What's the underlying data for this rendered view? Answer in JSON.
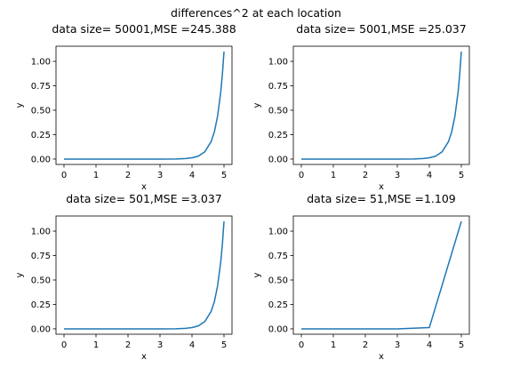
{
  "figure": {
    "suptitle": "differences^2 at each location"
  },
  "chart_data": [
    {
      "type": "line",
      "title": "data size= 50001,MSE =245.388",
      "xlabel": "x",
      "ylabel": "y",
      "xlim": [
        -0.25,
        5.25
      ],
      "ylim": [
        -0.055,
        1.155
      ],
      "xticks": [
        0,
        1,
        2,
        3,
        4,
        5
      ],
      "xtick_labels": [
        "0",
        "1",
        "2",
        "3",
        "4",
        "5"
      ],
      "yticks": [
        0,
        0.25,
        0.5,
        0.75,
        1.0
      ],
      "ytick_labels": [
        "0.00",
        "0.25",
        "0.50",
        "0.75",
        "1.00"
      ],
      "series": [
        {
          "color": "#1f77b4",
          "x": [
            0,
            1,
            2,
            3,
            3.5,
            3.8,
            4.0,
            4.2,
            4.4,
            4.6,
            4.7,
            4.8,
            4.9,
            4.95,
            5.0
          ],
          "y": [
            0,
            0,
            0,
            0,
            0.001,
            0.005,
            0.013,
            0.03,
            0.075,
            0.18,
            0.28,
            0.44,
            0.69,
            0.87,
            1.1
          ]
        }
      ]
    },
    {
      "type": "line",
      "title": "data size= 5001,MSE =25.037",
      "xlabel": "x",
      "ylabel": "y",
      "xlim": [
        -0.25,
        5.25
      ],
      "ylim": [
        -0.055,
        1.155
      ],
      "xticks": [
        0,
        1,
        2,
        3,
        4,
        5
      ],
      "xtick_labels": [
        "0",
        "1",
        "2",
        "3",
        "4",
        "5"
      ],
      "yticks": [
        0,
        0.25,
        0.5,
        0.75,
        1.0
      ],
      "ytick_labels": [
        "0.00",
        "0.25",
        "0.50",
        "0.75",
        "1.00"
      ],
      "series": [
        {
          "color": "#1f77b4",
          "x": [
            0,
            1,
            2,
            3,
            3.5,
            3.8,
            4.0,
            4.2,
            4.4,
            4.6,
            4.7,
            4.8,
            4.9,
            4.95,
            5.0
          ],
          "y": [
            0,
            0,
            0,
            0,
            0.001,
            0.005,
            0.013,
            0.03,
            0.075,
            0.18,
            0.28,
            0.44,
            0.69,
            0.87,
            1.1
          ]
        }
      ]
    },
    {
      "type": "line",
      "title": "data size= 501,MSE =3.037",
      "xlabel": "x",
      "ylabel": "y",
      "xlim": [
        -0.25,
        5.25
      ],
      "ylim": [
        -0.055,
        1.155
      ],
      "xticks": [
        0,
        1,
        2,
        3,
        4,
        5
      ],
      "xtick_labels": [
        "0",
        "1",
        "2",
        "3",
        "4",
        "5"
      ],
      "yticks": [
        0,
        0.25,
        0.5,
        0.75,
        1.0
      ],
      "ytick_labels": [
        "0.00",
        "0.25",
        "0.50",
        "0.75",
        "1.00"
      ],
      "series": [
        {
          "color": "#1f77b4",
          "x": [
            0,
            1,
            2,
            3,
            3.5,
            3.8,
            4.0,
            4.2,
            4.4,
            4.6,
            4.7,
            4.8,
            4.9,
            4.95,
            5.0
          ],
          "y": [
            0,
            0,
            0,
            0,
            0.001,
            0.005,
            0.013,
            0.03,
            0.075,
            0.18,
            0.28,
            0.44,
            0.69,
            0.87,
            1.1
          ]
        }
      ]
    },
    {
      "type": "line",
      "title": "data size= 51,MSE =1.109",
      "xlabel": "x",
      "ylabel": "y",
      "xlim": [
        -0.25,
        5.25
      ],
      "ylim": [
        -0.055,
        1.155
      ],
      "xticks": [
        0,
        1,
        2,
        3,
        4,
        5
      ],
      "xtick_labels": [
        "0",
        "1",
        "2",
        "3",
        "4",
        "5"
      ],
      "yticks": [
        0,
        0.25,
        0.5,
        0.75,
        1.0
      ],
      "ytick_labels": [
        "0.00",
        "0.25",
        "0.50",
        "0.75",
        "1.00"
      ],
      "series": [
        {
          "color": "#1f77b4",
          "x": [
            0,
            1,
            2,
            3,
            4,
            5
          ],
          "y": [
            0,
            0,
            0,
            0,
            0.013,
            1.1
          ]
        }
      ]
    }
  ]
}
